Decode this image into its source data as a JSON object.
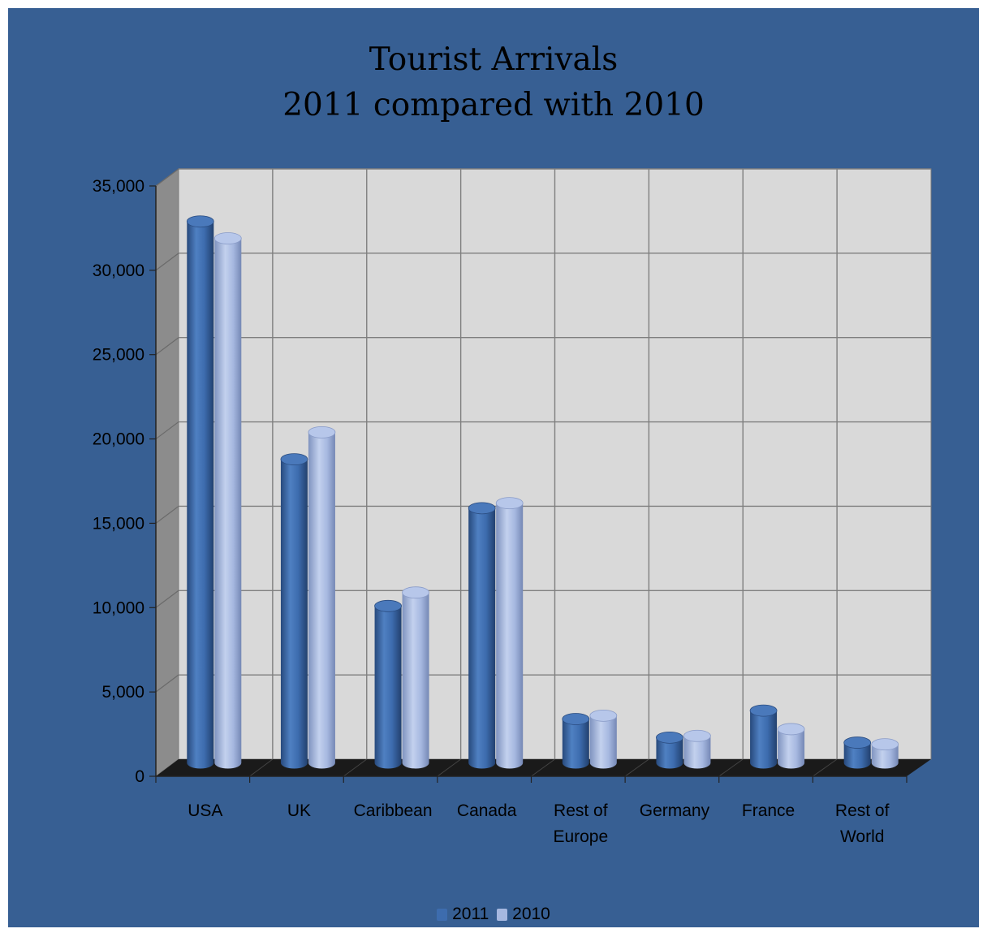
{
  "chart_data": {
    "type": "bar",
    "title": "Tourist Arrivals",
    "subtitle": "2011 compared with 2010",
    "categories": [
      "USA",
      "UK",
      "Caribbean",
      "Canada",
      "Rest of Europe",
      "Germany",
      "France",
      "Rest of World"
    ],
    "category_lines": [
      [
        "USA"
      ],
      [
        "UK"
      ],
      [
        "Caribbean"
      ],
      [
        "Canada"
      ],
      [
        "Rest of",
        "Europe"
      ],
      [
        "Germany"
      ],
      [
        "France"
      ],
      [
        "Rest of",
        "World"
      ]
    ],
    "series": [
      {
        "name": "2011",
        "values": [
          32100,
          18000,
          9300,
          15100,
          2600,
          1500,
          3100,
          1200
        ],
        "color": "#3d6cae"
      },
      {
        "name": "2010",
        "values": [
          31100,
          19600,
          10100,
          15400,
          2800,
          1600,
          2000,
          1100
        ],
        "color": "#a6b8e0"
      }
    ],
    "ylim": [
      0,
      35000
    ],
    "yticks": [
      0,
      5000,
      10000,
      15000,
      20000,
      25000,
      30000,
      35000
    ],
    "ytick_labels": [
      "0",
      "5,000",
      "10,000",
      "15,000",
      "20,000",
      "25,000",
      "30,000",
      "35,000"
    ],
    "grid": true,
    "legend_position": "bottom",
    "xlabel": "",
    "ylabel": ""
  },
  "colors": {
    "background": "#375f93",
    "plot_wall": "#d9d9d9",
    "side_wall": "#8c8c8c",
    "floor": "#1a1a1a"
  }
}
